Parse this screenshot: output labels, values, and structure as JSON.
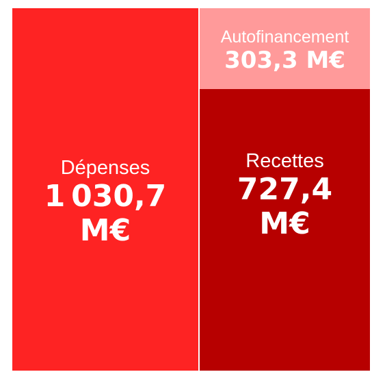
{
  "blocks": [
    {
      "label": "Dépenses",
      "value": "1 030,7 M€"
    },
    {
      "label": "Autofinancement",
      "value": "303,3 M€"
    },
    {
      "label": "Recettes",
      "value": "727,4 M€"
    }
  ]
}
